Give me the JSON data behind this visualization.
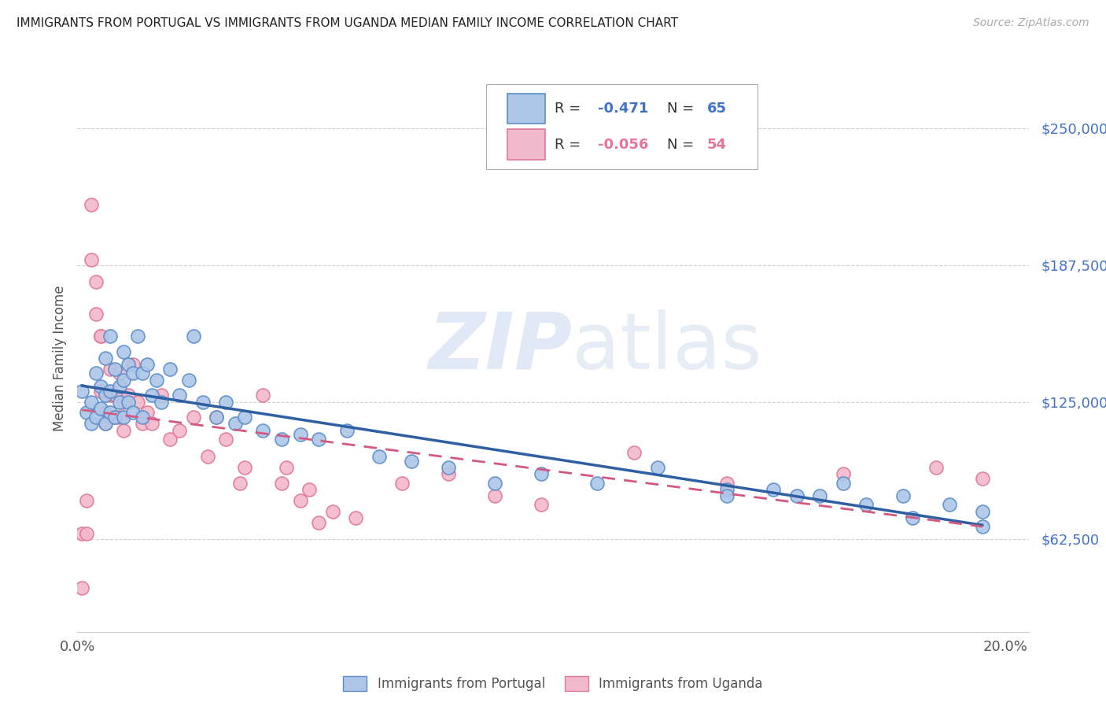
{
  "title": "IMMIGRANTS FROM PORTUGAL VS IMMIGRANTS FROM UGANDA MEDIAN FAMILY INCOME CORRELATION CHART",
  "source": "Source: ZipAtlas.com",
  "ylabel": "Median Family Income",
  "xlim": [
    0.0,
    0.205
  ],
  "ylim": [
    20000,
    270000
  ],
  "yticks": [
    62500,
    125000,
    187500,
    250000
  ],
  "ytick_labels": [
    "$62,500",
    "$125,000",
    "$187,500",
    "$250,000"
  ],
  "xticks": [
    0.0,
    0.05,
    0.1,
    0.15,
    0.2
  ],
  "xtick_labels": [
    "0.0%",
    "",
    "",
    "",
    "20.0%"
  ],
  "background_color": "#ffffff",
  "watermark_zip": "ZIP",
  "watermark_atlas": "atlas",
  "legend_R1_val": "-0.471",
  "legend_N1_val": "65",
  "legend_R2_val": "-0.056",
  "legend_N2_val": "54",
  "color_portugal": "#adc6e8",
  "color_portugal_edge": "#5b8dc8",
  "color_portugal_line": "#2e5fa3",
  "color_uganda": "#f2b8cc",
  "color_uganda_edge": "#e07898",
  "color_uganda_line": "#d45880",
  "portugal_x": [
    0.001,
    0.002,
    0.003,
    0.003,
    0.004,
    0.004,
    0.005,
    0.005,
    0.006,
    0.006,
    0.006,
    0.007,
    0.007,
    0.007,
    0.008,
    0.008,
    0.009,
    0.009,
    0.01,
    0.01,
    0.01,
    0.011,
    0.011,
    0.012,
    0.012,
    0.013,
    0.014,
    0.014,
    0.015,
    0.016,
    0.017,
    0.018,
    0.02,
    0.022,
    0.024,
    0.025,
    0.027,
    0.03,
    0.032,
    0.034,
    0.036,
    0.04,
    0.044,
    0.048,
    0.052,
    0.058,
    0.065,
    0.072,
    0.08,
    0.09,
    0.1,
    0.112,
    0.125,
    0.14,
    0.155,
    0.165,
    0.178,
    0.188,
    0.195,
    0.14,
    0.15,
    0.16,
    0.17,
    0.18,
    0.195
  ],
  "portugal_y": [
    130000,
    120000,
    125000,
    115000,
    138000,
    118000,
    132000,
    122000,
    145000,
    128000,
    115000,
    155000,
    130000,
    120000,
    140000,
    118000,
    132000,
    125000,
    148000,
    135000,
    118000,
    142000,
    125000,
    138000,
    120000,
    155000,
    138000,
    118000,
    142000,
    128000,
    135000,
    125000,
    140000,
    128000,
    135000,
    155000,
    125000,
    118000,
    125000,
    115000,
    118000,
    112000,
    108000,
    110000,
    108000,
    112000,
    100000,
    98000,
    95000,
    88000,
    92000,
    88000,
    95000,
    85000,
    82000,
    88000,
    82000,
    78000,
    75000,
    82000,
    85000,
    82000,
    78000,
    72000,
    68000
  ],
  "uganda_x": [
    0.001,
    0.001,
    0.002,
    0.002,
    0.003,
    0.003,
    0.004,
    0.004,
    0.005,
    0.005,
    0.005,
    0.006,
    0.006,
    0.007,
    0.007,
    0.007,
    0.008,
    0.008,
    0.009,
    0.009,
    0.01,
    0.01,
    0.011,
    0.012,
    0.013,
    0.014,
    0.015,
    0.016,
    0.018,
    0.02,
    0.022,
    0.025,
    0.028,
    0.032,
    0.036,
    0.04,
    0.044,
    0.05,
    0.055,
    0.06,
    0.07,
    0.08,
    0.09,
    0.1,
    0.12,
    0.14,
    0.165,
    0.185,
    0.195,
    0.03,
    0.035,
    0.045,
    0.048,
    0.052
  ],
  "uganda_y": [
    40000,
    65000,
    80000,
    65000,
    215000,
    190000,
    180000,
    165000,
    155000,
    155000,
    130000,
    120000,
    115000,
    140000,
    128000,
    118000,
    118000,
    128000,
    138000,
    118000,
    125000,
    112000,
    128000,
    142000,
    125000,
    115000,
    120000,
    115000,
    128000,
    108000,
    112000,
    118000,
    100000,
    108000,
    95000,
    128000,
    88000,
    85000,
    75000,
    72000,
    88000,
    92000,
    82000,
    78000,
    102000,
    88000,
    92000,
    95000,
    90000,
    118000,
    88000,
    95000,
    80000,
    70000
  ]
}
